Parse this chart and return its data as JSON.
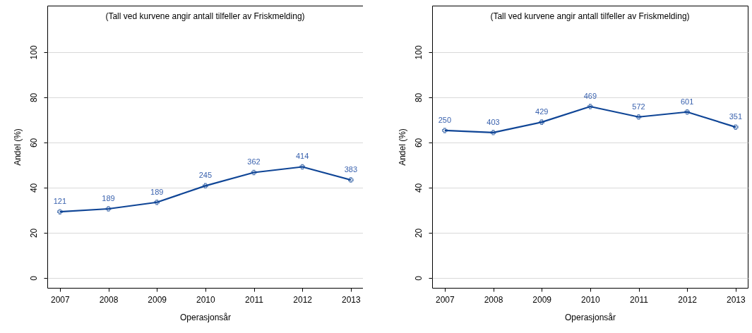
{
  "chart_data": [
    {
      "type": "line",
      "title": "(Tall ved kurvene angir antall tilfeller av Friskmelding)",
      "xlabel": "Operasjonsår",
      "ylabel": "Andel (%)",
      "x": [
        2007,
        2008,
        2009,
        2010,
        2011,
        2012,
        2013
      ],
      "xlim": [
        2006.74,
        2013.25
      ],
      "xticks": [
        2007,
        2008,
        2009,
        2010,
        2011,
        2012,
        2013
      ],
      "ylim": [
        -4.4,
        120.6
      ],
      "yticks": [
        0,
        20,
        40,
        60,
        80,
        100
      ],
      "grid": "y",
      "marker": "cross",
      "series": [
        {
          "color": "#0f4596",
          "values": [
            29.3,
            30.6,
            33.5,
            40.8,
            46.7,
            49.2,
            43.4
          ]
        }
      ],
      "annotations": [
        {
          "text": "121",
          "x": 2007,
          "y": 29.3
        },
        {
          "text": "189",
          "x": 2008,
          "y": 30.6
        },
        {
          "text": "189",
          "x": 2009,
          "y": 33.5
        },
        {
          "text": "245",
          "x": 2010,
          "y": 40.8
        },
        {
          "text": "362",
          "x": 2011,
          "y": 46.7
        },
        {
          "text": "414",
          "x": 2012,
          "y": 49.2
        },
        {
          "text": "383",
          "x": 2013,
          "y": 43.4
        }
      ]
    },
    {
      "type": "line",
      "title": "(Tall ved kurvene angir antall tilfeller av Friskmelding)",
      "xlabel": "Operasjonsår",
      "ylabel": "Andel (%)",
      "x": [
        2007,
        2008,
        2009,
        2010,
        2011,
        2012,
        2013
      ],
      "xlim": [
        2006.74,
        2013.25
      ],
      "xticks": [
        2007,
        2008,
        2009,
        2010,
        2011,
        2012,
        2013
      ],
      "ylim": [
        -4.4,
        120.6
      ],
      "yticks": [
        0,
        20,
        40,
        60,
        80,
        100
      ],
      "grid": "y",
      "marker": "cross",
      "series": [
        {
          "color": "#0f4596",
          "values": [
            65.3,
            64.4,
            69.0,
            75.9,
            71.3,
            73.5,
            66.8
          ]
        }
      ],
      "annotations": [
        {
          "text": "250",
          "x": 2007,
          "y": 65.3
        },
        {
          "text": "403",
          "x": 2008,
          "y": 64.4
        },
        {
          "text": "429",
          "x": 2009,
          "y": 69.0
        },
        {
          "text": "469",
          "x": 2010,
          "y": 75.9
        },
        {
          "text": "572",
          "x": 2011,
          "y": 71.3
        },
        {
          "text": "601",
          "x": 2012,
          "y": 73.5
        },
        {
          "text": "351",
          "x": 2013,
          "y": 66.8
        }
      ]
    }
  ]
}
